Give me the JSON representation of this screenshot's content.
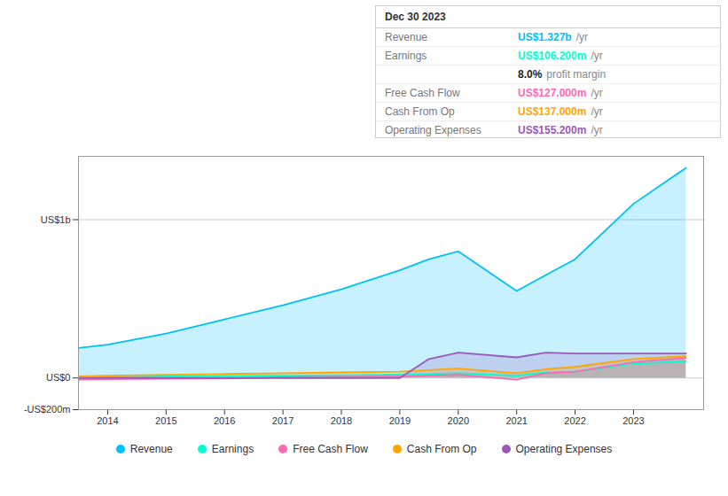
{
  "chart_data": {
    "type": "area",
    "x": [
      2013.5,
      2014,
      2015,
      2016,
      2017,
      2018,
      2019,
      2019.5,
      2020,
      2021,
      2021.5,
      2022,
      2023,
      2023.9
    ],
    "series": [
      {
        "name": "Revenue",
        "color": "#00bfff",
        "values": [
          190,
          210,
          280,
          370,
          460,
          560,
          680,
          750,
          800,
          550,
          650,
          750,
          1100,
          1327
        ]
      },
      {
        "name": "Earnings",
        "color": "#00ffcc",
        "values": [
          -5,
          5,
          10,
          12,
          15,
          18,
          22,
          25,
          30,
          15,
          35,
          40,
          90,
          106
        ]
      },
      {
        "name": "Free Cash Flow",
        "color": "#ff69b4",
        "values": [
          -10,
          -8,
          -5,
          -3,
          5,
          8,
          10,
          15,
          20,
          -10,
          30,
          40,
          100,
          127
        ]
      },
      {
        "name": "Cash From Op",
        "color": "#ffa500",
        "values": [
          10,
          15,
          20,
          25,
          30,
          35,
          40,
          50,
          60,
          30,
          55,
          70,
          120,
          137
        ]
      },
      {
        "name": "Operating Expenses",
        "color": "#9b59b6",
        "values": [
          0,
          0,
          0,
          0,
          0,
          0,
          0,
          120,
          160,
          130,
          160,
          155,
          155,
          155
        ]
      }
    ],
    "xlim": [
      2013.5,
      2024.2
    ],
    "ylim": [
      -200,
      1400
    ],
    "xticks": [
      2014,
      2015,
      2016,
      2017,
      2018,
      2019,
      2020,
      2021,
      2022,
      2023
    ],
    "yticks": [
      {
        "value": -200,
        "label": "-US$200m"
      },
      {
        "value": 0,
        "label": "US$0"
      },
      {
        "value": 1000,
        "label": "US$1b"
      }
    ],
    "grid": "y",
    "legend": "bottom",
    "annotations": [
      {
        "text": "Dec 30 2023"
      },
      {
        "label": "Revenue",
        "parts": [
          "US$1.327b",
          "/yr"
        ],
        "color": "#00bfff"
      },
      {
        "label": "Earnings",
        "parts": [
          "US$106.200m",
          "/yr"
        ],
        "color": "#00ffcc"
      },
      {
        "parts": [
          "8.0%",
          "profit margin"
        ],
        "color": "#ffffff"
      },
      {
        "label": "Free Cash Flow",
        "parts": [
          "US$127.000m",
          "/yr"
        ],
        "color": "#ff69b4"
      },
      {
        "label": "Cash From Op",
        "parts": [
          "US$137.000m",
          "/yr"
        ],
        "color": "#ffa500"
      },
      {
        "label": "Operating Expenses",
        "parts": [
          "US$155.200m",
          "/yr"
        ],
        "color": "#9b59b6"
      }
    ]
  }
}
